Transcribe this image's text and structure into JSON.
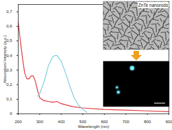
{
  "chart_data": {
    "type": "line",
    "x_label": "Wavelength (nm)",
    "y_label": "Absorption/ Intensity (a.u.)",
    "annotations": [
      "ZnTe nanorods"
    ],
    "xlim": [
      200,
      900
    ],
    "xticks": [
      200,
      300,
      400,
      500,
      600,
      700,
      800,
      900
    ],
    "ylim": [
      0,
      0.75
    ],
    "yticks": [
      0,
      {
        "value": 0.1,
        "label": "0,1"
      },
      {
        "value": 0.2,
        "label": "0,2"
      },
      {
        "value": 0.3,
        "label": "0,3"
      },
      {
        "value": 0.4,
        "label": "0,4"
      },
      {
        "value": 0.5,
        "label": "0,5"
      },
      {
        "value": 0.6,
        "label": "0,6"
      },
      {
        "value": 0.7,
        "label": "0,7"
      }
    ],
    "grid": false,
    "series": [
      {
        "color": "#e03a3e",
        "x": [
          200,
          210,
          220,
          230,
          240,
          250,
          260,
          270,
          280,
          290,
          300,
          320,
          340,
          360,
          380,
          400,
          450,
          500,
          600,
          700,
          800,
          900
        ],
        "values": [
          0.63,
          0.5,
          0.38,
          0.28,
          0.24,
          0.24,
          0.26,
          0.26,
          0.22,
          0.16,
          0.11,
          0.09,
          0.085,
          0.08,
          0.085,
          0.07,
          0.05,
          0.04,
          0.03,
          0.025,
          0.02,
          0.015
        ]
      },
      {
        "color": "#7fd0de",
        "x": [
          290,
          300,
          320,
          340,
          360,
          370,
          380,
          400,
          420,
          440,
          460,
          480,
          500,
          520
        ],
        "values": [
          0.12,
          0.14,
          0.22,
          0.33,
          0.39,
          0.4,
          0.4,
          0.36,
          0.28,
          0.19,
          0.11,
          0.06,
          0.03,
          0.01
        ]
      }
    ]
  }
}
